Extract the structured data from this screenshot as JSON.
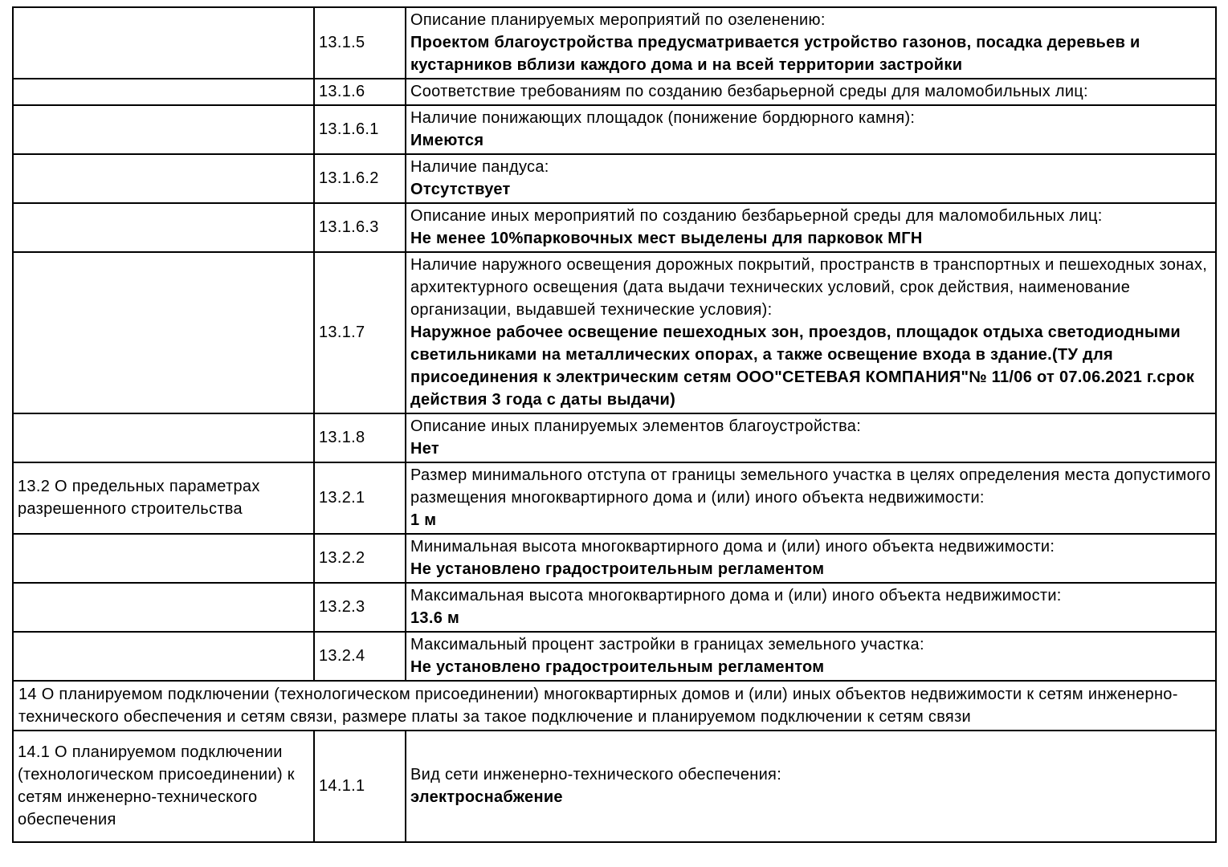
{
  "document": {
    "background_color": "#ffffff",
    "text_color": "#000000",
    "border_color": "#000000"
  },
  "table": {
    "rows": [
      {
        "type": "item",
        "section": "",
        "code": "13.1.5",
        "label": "Описание планируемых мероприятий по озеленению:",
        "value": "Проектом благоустройства предусматривается устройство газонов, посадка деревьев и кустарников вблизи каждого дома и на всей территории застройки"
      },
      {
        "type": "item",
        "section": "",
        "code": "13.1.6",
        "label": "Соответствие требованиям по созданию безбарьерной среды для маломобильных лиц:",
        "value": ""
      },
      {
        "type": "item",
        "section": "",
        "code": "13.1.6.1",
        "label": "Наличие понижающих площадок (понижение бордюрного камня):",
        "value": "Имеются"
      },
      {
        "type": "item",
        "section": "",
        "code": "13.1.6.2",
        "label": "Наличие пандуса:",
        "value": "Отсутствует"
      },
      {
        "type": "item",
        "section": "",
        "code": "13.1.6.3",
        "label": "Описание иных мероприятий по созданию безбарьерной среды для маломобильных лиц:",
        "value": "Не менее 10%парковочных мест выделены для парковок МГН"
      },
      {
        "type": "item",
        "section": "",
        "code": "13.1.7",
        "tall": true,
        "label": "Наличие наружного освещения дорожных покрытий, пространств в транспортных и пешеходных зонах, архитектурного освещения (дата выдачи технических условий, срок действия, наименование организации, выдавшей технические условия):",
        "value": "Наружное рабочее освещение пешеходных зон, проездов, площадок отдыха светодиодными светильниками на металлических опорах, а также освещение входа в здание.(ТУ для присоединения к электрическим сетям ООО\"СЕТЕВАЯ КОМПАНИЯ\"№ 11/06 от 07.06.2021 г.срок действия 3 года с даты выдачи)"
      },
      {
        "type": "item",
        "section": "",
        "code": "13.1.8",
        "label": "Описание иных планируемых элементов благоустройства:",
        "value": "Нет"
      },
      {
        "type": "item",
        "section": "13.2 О предельных параметрах разрешенного строительства",
        "code": "13.2.1",
        "label": "Размер минимального отступа от границы земельного участка в целях определения места допустимого размещения многоквартирного дома и (или) иного объекта недвижимости:",
        "value": "1 м"
      },
      {
        "type": "item",
        "section": "",
        "code": "13.2.2",
        "label": "Минимальная высота многоквартирного дома и (или) иного объекта недвижимости:",
        "value": "Не установлено градостроительным регламентом"
      },
      {
        "type": "item",
        "section": "",
        "code": "13.2.3",
        "label": "Максимальная высота многоквартирного дома и (или) иного объекта недвижимости:",
        "value": "13.6 м"
      },
      {
        "type": "item",
        "section": "",
        "code": "13.2.4",
        "label": "Максимальный процент застройки в границах земельного участка:",
        "value": "Не установлено градостроительным регламентом"
      },
      {
        "type": "section",
        "text": "14 О планируемом подключении (технологическом присоединении) многоквартирных домов и (или) иных объектов недвижимости к сетям инженерно-технического обеспечения и сетям связи, размере платы за такое подключение и планируемом подключении к сетям связи"
      },
      {
        "type": "item",
        "section": "14.1 О планируемом подключении (технологическом присоединении) к сетям инженерно-технического обеспечения",
        "code": "14.1.1",
        "last": true,
        "label": "Вид сети инженерно-технического обеспечения:",
        "value": "электроснабжение"
      }
    ]
  }
}
